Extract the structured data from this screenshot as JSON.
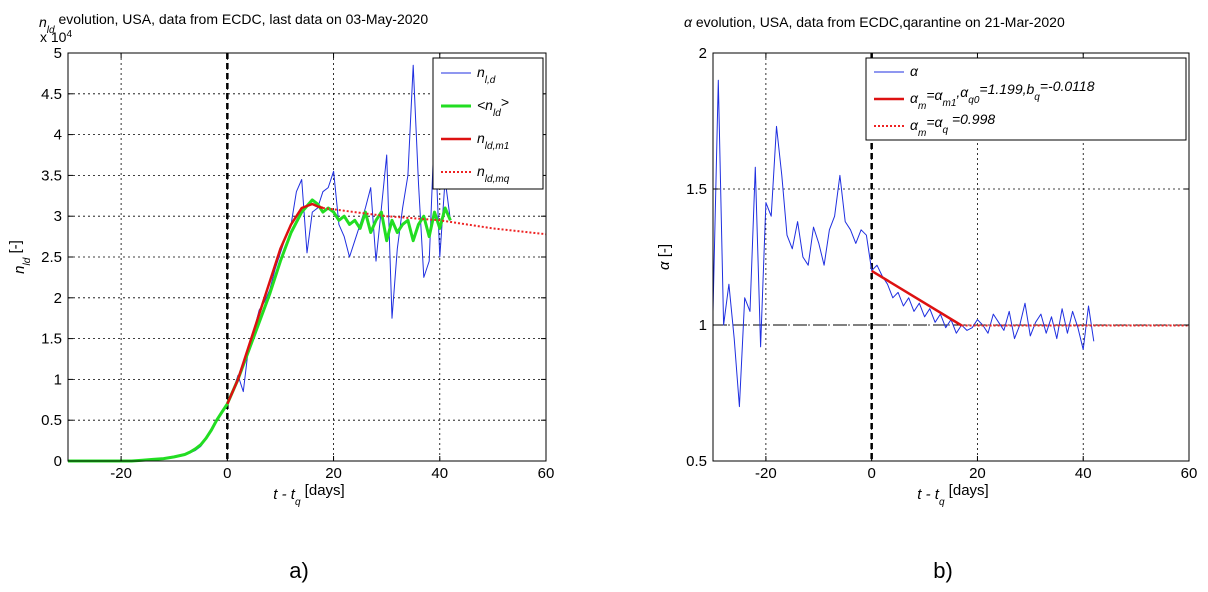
{
  "chart_data": [
    {
      "type": "line",
      "panel_label": "a)",
      "title_symbol": "n",
      "title_symbol_sub": "ld",
      "title_rest": " evolution, USA, data from ECDC, last data on 03-May-2020",
      "y_exponent": "x 10",
      "y_exponent_power": "4",
      "xlabel_main": "t - t",
      "xlabel_sub": "q",
      "xlabel_unit": " [days]",
      "ylabel_main": "n",
      "ylabel_sub": "ld",
      "ylabel_unit": " [-]",
      "xlim": [
        -30,
        60
      ],
      "ylim": [
        0,
        5
      ],
      "xticks": [
        -20,
        0,
        20,
        40,
        60
      ],
      "xtick_labels": [
        "-20",
        "0",
        "20",
        "40",
        "60"
      ],
      "yticks": [
        0,
        0.5,
        1,
        1.5,
        2,
        2.5,
        3,
        3.5,
        4,
        4.5,
        5
      ],
      "ytick_labels": [
        "0",
        "0.5",
        "1",
        "1.5",
        "2",
        "2.5",
        "3",
        "3.5",
        "4",
        "4.5",
        "5"
      ],
      "grid": true,
      "legend_position": "top-right",
      "vline_x": 0,
      "series": [
        {
          "legend_main": "n",
          "legend_sub": "l,d",
          "color": "#1f2fe0",
          "width": 1,
          "dash": "",
          "x": [
            -30,
            -28,
            -26,
            -24,
            -22,
            -20,
            -18,
            -16,
            -14,
            -12,
            -10,
            -8,
            -7,
            -6,
            -5,
            -4,
            -3,
            -2,
            -1,
            0,
            1,
            2,
            3,
            4,
            5,
            6,
            7,
            8,
            9,
            10,
            11,
            12,
            13,
            14,
            15,
            16,
            17,
            18,
            19,
            20,
            21,
            22,
            23,
            24,
            25,
            26,
            27,
            28,
            29,
            30,
            31,
            32,
            33,
            34,
            35,
            36,
            37,
            38,
            39,
            40,
            41,
            42
          ],
          "values": [
            0,
            0,
            0,
            0,
            0,
            0,
            0,
            0.01,
            0.02,
            0.03,
            0.05,
            0.08,
            0.1,
            0.13,
            0.18,
            0.27,
            0.38,
            0.5,
            0.6,
            0.7,
            0.85,
            1.05,
            0.85,
            1.4,
            1.6,
            1.85,
            1.95,
            2.1,
            2.35,
            2.55,
            2.75,
            2.9,
            3.3,
            3.45,
            2.55,
            3.05,
            3.1,
            3.3,
            3.35,
            3.55,
            2.9,
            2.75,
            2.5,
            2.7,
            2.9,
            3.1,
            3.35,
            2.45,
            3.1,
            3.75,
            1.75,
            2.6,
            3.1,
            3.5,
            4.85,
            3.4,
            2.25,
            2.45,
            4.1,
            2.5,
            3.45,
            2.95
          ]
        },
        {
          "legend_main": "<n",
          "legend_sub": "ld",
          "legend_tail": ">",
          "color": "#22dd22",
          "width": 3,
          "dash": "",
          "x": [
            -30,
            -28,
            -26,
            -24,
            -22,
            -20,
            -18,
            -16,
            -14,
            -12,
            -10,
            -8,
            -7,
            -6,
            -5,
            -4,
            -3,
            -2,
            -1,
            0,
            2,
            4,
            6,
            8,
            10,
            12,
            14,
            16,
            17,
            18,
            19,
            20,
            21,
            22,
            23,
            24,
            25,
            26,
            27,
            28,
            29,
            30,
            31,
            32,
            33,
            34,
            35,
            36,
            37,
            38,
            39,
            40,
            41,
            42
          ],
          "values": [
            0,
            0,
            0,
            0,
            0,
            0,
            0,
            0.01,
            0.02,
            0.03,
            0.05,
            0.08,
            0.11,
            0.15,
            0.2,
            0.28,
            0.38,
            0.5,
            0.6,
            0.7,
            1.0,
            1.35,
            1.7,
            2.05,
            2.45,
            2.8,
            3.05,
            3.2,
            3.15,
            3.05,
            3.1,
            3.05,
            2.95,
            3.0,
            2.9,
            2.95,
            2.85,
            3.05,
            2.8,
            2.95,
            3.05,
            2.7,
            2.95,
            2.8,
            2.9,
            2.95,
            2.7,
            2.9,
            3.0,
            2.75,
            3.05,
            2.85,
            3.1,
            2.95
          ]
        },
        {
          "legend_main": "n",
          "legend_sub": "ld,m1",
          "color": "#dd1111",
          "width": 2.5,
          "dash": "",
          "x": [
            0,
            2,
            4,
            6,
            8,
            10,
            12,
            14,
            16,
            17,
            18
          ],
          "values": [
            0.7,
            1.0,
            1.4,
            1.8,
            2.2,
            2.6,
            2.9,
            3.1,
            3.15,
            3.12,
            3.1
          ]
        },
        {
          "legend_main": "n",
          "legend_sub": "ld,mq",
          "color": "#ee2222",
          "width": 2,
          "dash": "2,2",
          "x": [
            18,
            30,
            40,
            50,
            60
          ],
          "values": [
            3.1,
            3.0,
            2.95,
            2.85,
            2.78
          ]
        }
      ]
    },
    {
      "type": "line",
      "panel_label": "b)",
      "title_symbol": "α",
      "title_rest": " evolution, USA, data from ECDC,qarantine on 21-Mar-2020",
      "xlabel_main": "t - t",
      "xlabel_sub": "q",
      "xlabel_unit": " [days]",
      "ylabel_main": "α",
      "ylabel_unit": " [-]",
      "xlim": [
        -30,
        60
      ],
      "ylim": [
        0.5,
        2
      ],
      "xticks": [
        -20,
        0,
        20,
        40,
        60
      ],
      "xtick_labels": [
        "-20",
        "0",
        "20",
        "40",
        "60"
      ],
      "yticks": [
        0.5,
        1,
        1.5,
        2
      ],
      "ytick_labels": [
        "0.5",
        "1",
        "1.5",
        "2"
      ],
      "grid": true,
      "legend_position": "top-right",
      "vline_x": 0,
      "hline_y": 1,
      "series": [
        {
          "legend_text": "α",
          "color": "#1f2fe0",
          "width": 1,
          "dash": "",
          "x": [
            -30,
            -29,
            -28,
            -27,
            -26,
            -25,
            -24,
            -23,
            -22,
            -21,
            -20,
            -19,
            -18,
            -17,
            -16,
            -15,
            -14,
            -13,
            -12,
            -11,
            -10,
            -9,
            -8,
            -7,
            -6,
            -5,
            -4,
            -3,
            -2,
            -1,
            0,
            1,
            2,
            3,
            4,
            5,
            6,
            7,
            8,
            9,
            10,
            11,
            12,
            13,
            14,
            15,
            16,
            17,
            18,
            19,
            20,
            21,
            22,
            23,
            24,
            25,
            26,
            27,
            28,
            29,
            30,
            31,
            32,
            33,
            34,
            35,
            36,
            37,
            38,
            39,
            40,
            41,
            42
          ],
          "values": [
            1.05,
            1.9,
            1.0,
            1.15,
            0.95,
            0.7,
            1.1,
            1.05,
            1.58,
            0.92,
            1.45,
            1.4,
            1.73,
            1.55,
            1.33,
            1.28,
            1.38,
            1.25,
            1.22,
            1.36,
            1.3,
            1.22,
            1.35,
            1.4,
            1.55,
            1.38,
            1.35,
            1.3,
            1.35,
            1.33,
            1.2,
            1.22,
            1.18,
            1.15,
            1.1,
            1.12,
            1.07,
            1.1,
            1.05,
            1.08,
            1.03,
            1.06,
            1.01,
            1.04,
            0.99,
            1.02,
            0.97,
            1.0,
            0.98,
            0.99,
            1.02,
            1.0,
            0.97,
            1.04,
            1.01,
            0.98,
            1.05,
            0.95,
            1.0,
            1.08,
            0.96,
            1.01,
            1.04,
            0.97,
            1.03,
            0.95,
            1.06,
            0.97,
            1.05,
            0.99,
            0.91,
            1.07,
            0.94
          ]
        },
        {
          "legend_text": "α",
          "legend_sub1": "m",
          "legend_eq1": "=α",
          "legend_sub2": "m1",
          "legend_eq2": ",α",
          "legend_sub3": "q0",
          "legend_eq3": "=1.199,b",
          "legend_sub4": "q",
          "legend_eq4": "=-0.0118",
          "color": "#dd1111",
          "width": 2.5,
          "dash": "",
          "x": [
            0,
            17
          ],
          "values": [
            1.199,
            0.998
          ]
        },
        {
          "legend_text": "α",
          "legend_sub1": "m",
          "legend_eq1": "=α",
          "legend_sub2": "q",
          "legend_eq2": " =0.998",
          "color": "#ee2222",
          "width": 2,
          "dash": "2,2",
          "x": [
            17,
            60
          ],
          "values": [
            0.998,
            0.998
          ]
        }
      ]
    }
  ]
}
